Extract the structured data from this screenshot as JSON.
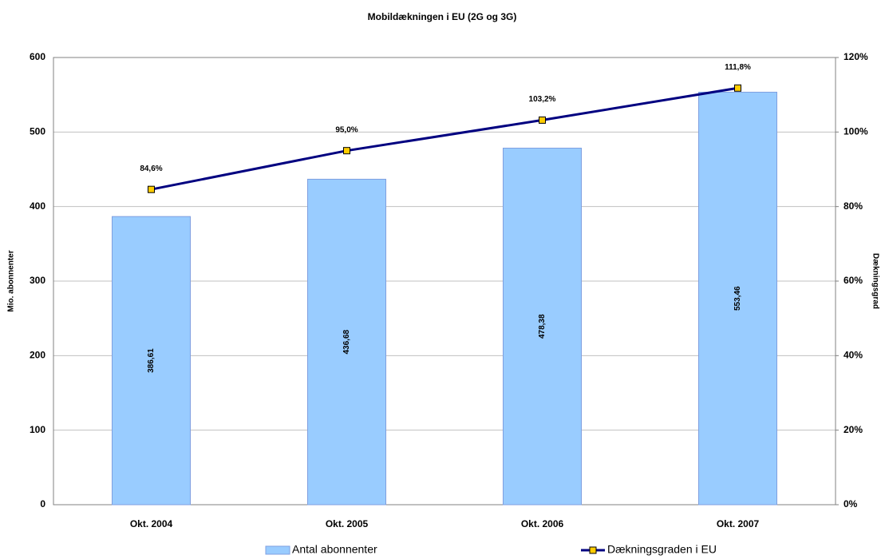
{
  "chart_data": {
    "type": "bar",
    "title": "Mobildækningen i EU (2G og 3G)",
    "y_label": "Mio. abonnenter",
    "y2_label": "Dækningsgrad",
    "categories": [
      "Okt. 2004",
      "Okt. 2005",
      "Okt. 2006",
      "Okt. 2007"
    ],
    "series": [
      {
        "name": "Antal abonnenter",
        "type": "bar",
        "color": "#99ccff",
        "values": [
          386.61,
          436.68,
          478.38,
          553.46
        ],
        "value_labels": [
          "386,61",
          "436,68",
          "478,38",
          "553,46"
        ]
      },
      {
        "name": "Dækningsgraden i EU",
        "type": "line",
        "axis": "y2",
        "color": "#000080",
        "marker_color": "#ffcc00",
        "values": [
          84.6,
          95,
          103.2,
          111.8
        ],
        "value_labels": [
          "84,6%",
          "95,0%",
          "103,2%",
          "111,8%"
        ]
      }
    ],
    "ylim": [
      0,
      600
    ],
    "yticks": [
      0,
      100,
      200,
      300,
      400,
      500,
      600
    ],
    "y2lim": [
      0,
      120
    ],
    "y2ticks": [
      {
        "value": 0,
        "label": "0%"
      },
      {
        "value": 20,
        "label": "20%"
      },
      {
        "value": 40,
        "label": "40%"
      },
      {
        "value": 60,
        "label": "60%"
      },
      {
        "value": 80,
        "label": "80%"
      },
      {
        "value": 100,
        "label": "100%"
      },
      {
        "value": 120,
        "label": "120%"
      }
    ],
    "grid": true,
    "legend": "bottom"
  }
}
